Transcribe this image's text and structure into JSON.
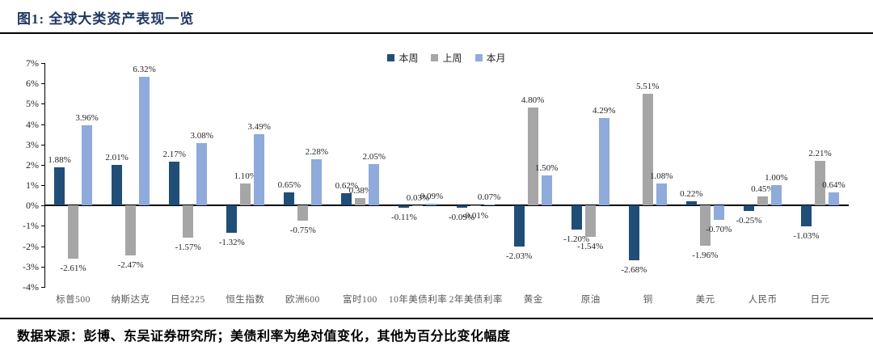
{
  "figure": {
    "title": "图1:  全球大类资产表现一览",
    "source_note": "数据来源：彭博、东吴证券研究所；美债利率为绝对值变化，其他为百分比变化幅度"
  },
  "colors": {
    "title_text": "#1F3864",
    "series_this_week": "#1F4E79",
    "series_last_week": "#A6A6A6",
    "series_this_month": "#8FAADC",
    "axis_line": "#000000",
    "value_label_text": "#262626",
    "category_text": "#595959"
  },
  "chart_data": {
    "type": "bar",
    "title": "全球大类资产表现一览",
    "categories": [
      "标普500",
      "纳斯达克",
      "日经225",
      "恒生指数",
      "欧洲600",
      "富时100",
      "10年美债利率",
      "2年美债利率",
      "黄金",
      "原油",
      "铜",
      "美元",
      "人民币",
      "日元"
    ],
    "series": [
      {
        "name": "本周",
        "color": "#1F4E79",
        "values": [
          1.88,
          2.01,
          2.17,
          -1.32,
          0.65,
          0.62,
          -0.11,
          -0.09,
          -2.03,
          -1.2,
          -2.68,
          0.22,
          -0.25,
          -1.03
        ]
      },
      {
        "name": "上周",
        "color": "#A6A6A6",
        "values": [
          -2.61,
          -2.47,
          -1.57,
          1.1,
          -0.75,
          0.38,
          0.03,
          -0.01,
          4.8,
          -1.54,
          5.51,
          -1.96,
          0.45,
          2.21
        ]
      },
      {
        "name": "本月",
        "color": "#8FAADC",
        "values": [
          3.96,
          6.32,
          3.08,
          3.49,
          2.28,
          2.05,
          0.09,
          0.07,
          1.5,
          4.29,
          1.08,
          -0.7,
          1.0,
          0.64
        ]
      }
    ],
    "y_tick_labels": [
      "7%",
      "6%",
      "5%",
      "4%",
      "3%",
      "2%",
      "1%",
      "0%",
      "-1%",
      "-2%",
      "-3%",
      "-4%"
    ],
    "ylim": [
      -4,
      7
    ],
    "y_tick_step": 1,
    "value_label_format": "0.00%",
    "grid": false,
    "legend_position": "top-center",
    "value_labels": true
  }
}
